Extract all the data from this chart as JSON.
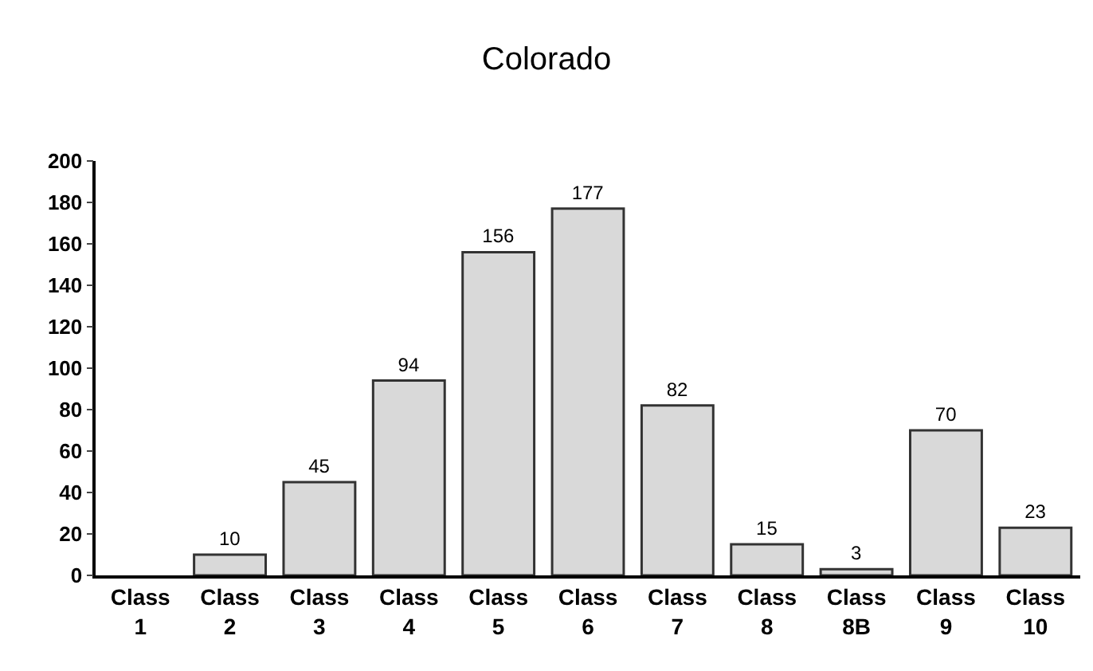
{
  "chart_data": {
    "type": "bar",
    "title": "Colorado",
    "categories": [
      "Class\n1",
      "Class\n2",
      "Class\n3",
      "Class\n4",
      "Class\n5",
      "Class\n6",
      "Class\n7",
      "Class\n8",
      "Class\n8B",
      "Class\n9",
      "Class\n10"
    ],
    "values": [
      null,
      10,
      45,
      94,
      156,
      177,
      82,
      15,
      3,
      70,
      23
    ],
    "value_labels": [
      null,
      "10",
      "45",
      "94",
      "156",
      "177",
      "82",
      "15",
      "3",
      "70",
      "23"
    ],
    "color": "#d9d9d9",
    "ylim": [
      0,
      200
    ],
    "yticks": [
      0,
      20,
      40,
      60,
      80,
      100,
      120,
      140,
      160,
      180,
      200
    ],
    "legend": false
  }
}
